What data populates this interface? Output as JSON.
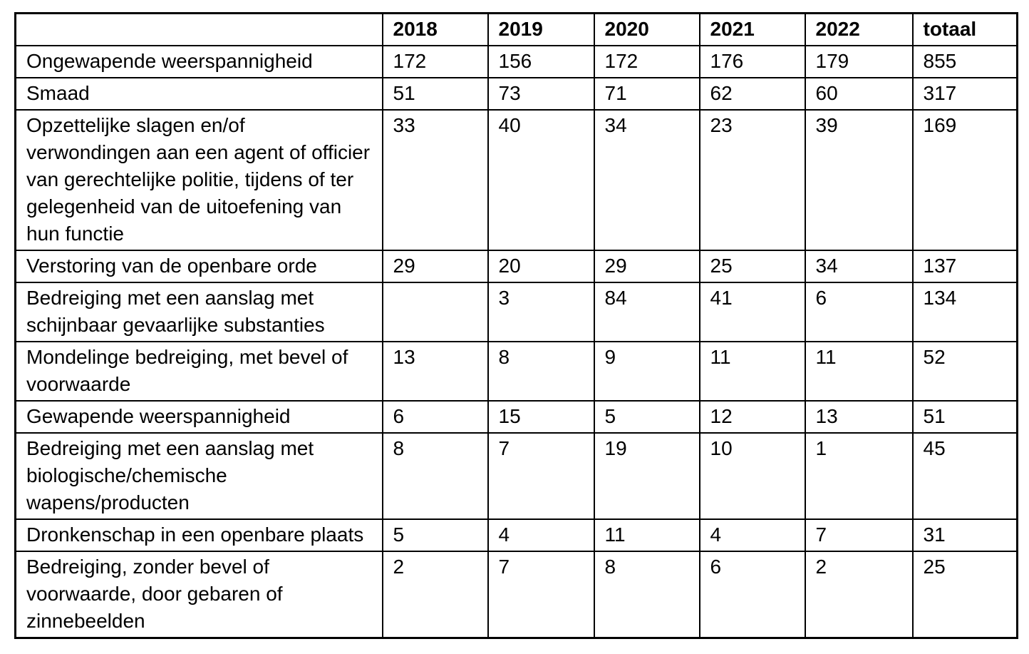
{
  "table": {
    "columns": [
      "",
      "2018",
      "2019",
      "2020",
      "2021",
      "2022",
      "totaal"
    ],
    "rows": [
      {
        "label": "Ongewapende weerspannigheid",
        "values": [
          "172",
          "156",
          "172",
          "176",
          "179",
          "855"
        ]
      },
      {
        "label": "Smaad",
        "values": [
          "51",
          "73",
          "71",
          "62",
          "60",
          "317"
        ]
      },
      {
        "label": "Opzettelijke slagen en/of verwondingen aan een agent of officier van gerechtelijke politie, tijdens of ter gelegenheid van de uitoefening van hun functie",
        "values": [
          "33",
          "40",
          "34",
          "23",
          "39",
          "169"
        ]
      },
      {
        "label": "Verstoring van de openbare orde",
        "values": [
          "29",
          "20",
          "29",
          "25",
          "34",
          "137"
        ]
      },
      {
        "label": "Bedreiging met een aanslag met schijnbaar gevaarlijke substanties",
        "values": [
          "",
          "3",
          "84",
          "41",
          "6",
          "134"
        ]
      },
      {
        "label": "Mondelinge bedreiging, met bevel of voorwaarde",
        "values": [
          "13",
          "8",
          "9",
          "11",
          "11",
          "52"
        ]
      },
      {
        "label": "Gewapende weerspannigheid",
        "values": [
          "6",
          "15",
          "5",
          "12",
          "13",
          "51"
        ]
      },
      {
        "label": "Bedreiging met een aanslag met biologische/chemische wapens/producten",
        "values": [
          "8",
          "7",
          "19",
          "10",
          "1",
          "45"
        ]
      },
      {
        "label": "Dronkenschap in een openbare plaats",
        "values": [
          "5",
          "4",
          "11",
          "4",
          "7",
          "31"
        ]
      },
      {
        "label": "Bedreiging, zonder bevel of voorwaarde, door gebaren of zinnebeelden",
        "values": [
          "2",
          "7",
          "8",
          "6",
          "2",
          "25"
        ]
      }
    ]
  }
}
